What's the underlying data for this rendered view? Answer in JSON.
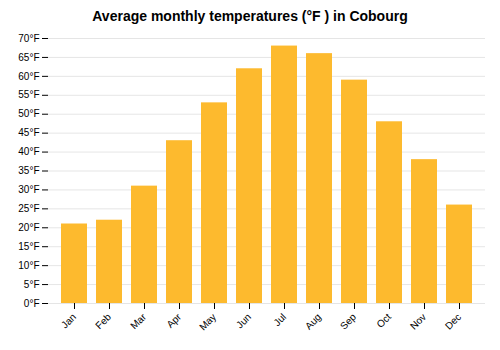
{
  "chart_data": {
    "type": "bar",
    "title": "Average monthly temperatures (°F ) in Cobourg",
    "categories": [
      "Jan",
      "Feb",
      "Mar",
      "Apr",
      "May",
      "Jun",
      "Jul",
      "Aug",
      "Sep",
      "Oct",
      "Nov",
      "Dec"
    ],
    "values": [
      21,
      22,
      31,
      43,
      53,
      62,
      68,
      66,
      59,
      48,
      38,
      26
    ],
    "color": "#FDBA2E",
    "ylim": [
      0,
      70
    ],
    "yticks": [
      {
        "value": 0,
        "label": "0°F"
      },
      {
        "value": 5,
        "label": "5°F"
      },
      {
        "value": 10,
        "label": "10°F"
      },
      {
        "value": 15,
        "label": "15°F"
      },
      {
        "value": 20,
        "label": "20°F"
      },
      {
        "value": 25,
        "label": "25°F"
      },
      {
        "value": 30,
        "label": "30°F"
      },
      {
        "value": 35,
        "label": "35°F"
      },
      {
        "value": 40,
        "label": "40°F"
      },
      {
        "value": 45,
        "label": "45°F"
      },
      {
        "value": 50,
        "label": "50°F"
      },
      {
        "value": 55,
        "label": "55°F"
      },
      {
        "value": 60,
        "label": "60°F"
      },
      {
        "value": 65,
        "label": "65°F"
      },
      {
        "value": 70,
        "label": "70°F"
      }
    ],
    "grid": true
  }
}
